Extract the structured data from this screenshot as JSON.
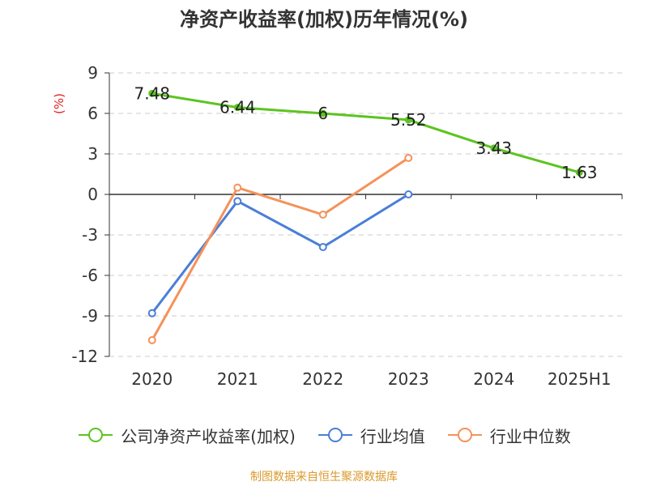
{
  "title": "净资产收益率(加权)历年情况(%)",
  "source": "制图数据来自恒生聚源数据库",
  "chart_data": {
    "type": "line",
    "title": "净资产收益率(加权)历年情况(%)",
    "ylabel": "(%)",
    "xlabel": "",
    "categories": [
      "2020",
      "2021",
      "2022",
      "2023",
      "2024",
      "2025H1"
    ],
    "ylim": [
      -12,
      9
    ],
    "yticks": [
      "9",
      "6",
      "3",
      "0",
      "-3",
      "-6",
      "-9",
      "-12"
    ],
    "grid": true,
    "legend_position": "bottom",
    "series": [
      {
        "name": "公司净资产收益率(加权)",
        "color": "#5cc41f",
        "values": [
          7.48,
          6.44,
          6,
          5.52,
          3.43,
          1.63
        ],
        "value_labels": [
          "7.48",
          "6.44",
          "6",
          "5.52",
          "3.43",
          "1.63"
        ]
      },
      {
        "name": "行业均值",
        "color": "#4a7fd8",
        "values": [
          -8.8,
          -0.5,
          -3.9,
          0.0,
          null,
          null
        ]
      },
      {
        "name": "行业中位数",
        "color": "#f5925a",
        "values": [
          -10.8,
          0.5,
          -1.5,
          2.7,
          null,
          null
        ]
      }
    ]
  }
}
